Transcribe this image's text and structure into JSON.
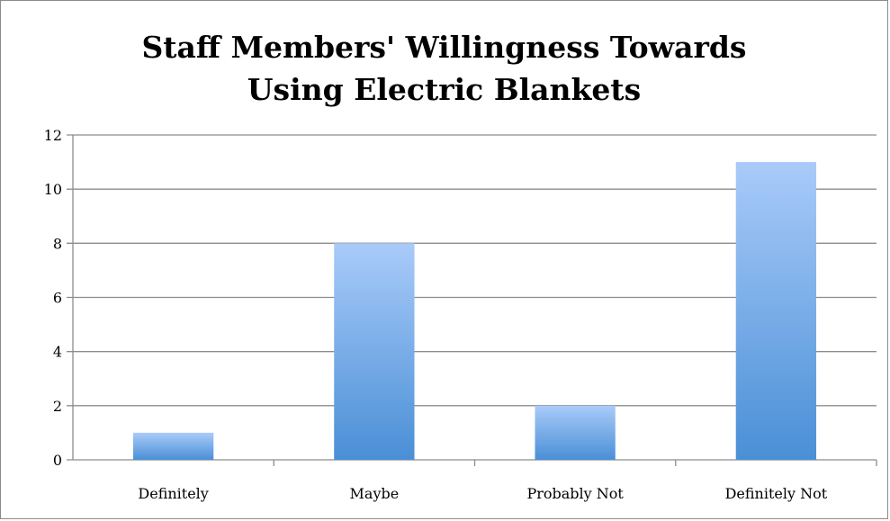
{
  "chart_data": {
    "type": "bar",
    "title_lines": [
      "Staff Members' Willingness Towards",
      "Using Electric Blankets"
    ],
    "categories": [
      "Definitely",
      "Maybe",
      "Probably Not",
      "Definitely Not"
    ],
    "values": [
      1,
      8,
      2,
      11
    ],
    "ylim": [
      0,
      12
    ],
    "yticks": [
      "0",
      "2",
      "4",
      "6",
      "8",
      "10",
      "12"
    ],
    "xlabel": "",
    "ylabel": "",
    "grid": true,
    "legend": "none",
    "colors": {
      "bar_top": "#a9cbf9",
      "bar_bottom": "#4a8fd6",
      "gridline": "#8c8c8c",
      "axis": "#8c8c8c"
    }
  }
}
